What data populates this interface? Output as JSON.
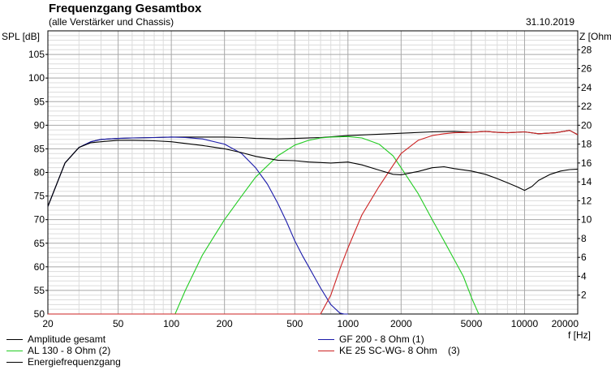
{
  "header": {
    "title": "Frequenzgang Gesamtbox",
    "subtitle": "(alle Verstärker und Chassis)",
    "date": "31.10.2019"
  },
  "chart_data": {
    "type": "line",
    "title": "Frequenzgang Gesamtbox",
    "subtitle": "(alle Verstärker und Chassis)",
    "xlabel": "f [Hz]",
    "ylabel": "SPL [dB]",
    "y2label": "Z [Ohm]",
    "xscale": "log",
    "xlim": [
      20,
      20000
    ],
    "ylim": [
      50,
      110
    ],
    "y2lim": [
      0,
      30
    ],
    "grid": true,
    "x_ticks": [
      20,
      50,
      100,
      200,
      500,
      1000,
      2000,
      5000,
      10000,
      20000
    ],
    "x_tick_labels": [
      "20",
      "50",
      "100",
      "200",
      "500",
      "1000",
      "2000",
      "5000",
      "10000",
      "20000"
    ],
    "y_ticks": [
      50,
      55,
      60,
      65,
      70,
      75,
      80,
      85,
      90,
      95,
      100,
      105
    ],
    "y_tick_labels": [
      "50",
      "55",
      "60",
      "65",
      "70",
      "75",
      "80",
      "85",
      "90",
      "95",
      "100",
      "105"
    ],
    "y2_ticks": [
      2,
      4,
      6,
      8,
      10,
      12,
      14,
      16,
      18,
      20,
      22,
      24,
      26,
      28
    ],
    "y2_tick_labels": [
      "2",
      "4",
      "6",
      "8",
      "10",
      "12",
      "14",
      "16",
      "18",
      "20",
      "22",
      "24",
      "26",
      "28"
    ],
    "legend_position": "bottom",
    "series": [
      {
        "name": "Amplitude gesamt",
        "color": "#000000",
        "x": [
          20,
          25,
          30,
          35,
          40,
          50,
          60,
          80,
          100,
          150,
          200,
          250,
          300,
          400,
          500,
          700,
          1000,
          1500,
          2000,
          3000,
          4000,
          5000,
          6000,
          7000,
          8000,
          10000,
          12000,
          15000,
          18000,
          20000
        ],
        "y": [
          72.8,
          82,
          85.3,
          86.5,
          87,
          87.2,
          87.3,
          87.4,
          87.5,
          87.5,
          87.5,
          87.4,
          87.2,
          87.1,
          87.2,
          87.4,
          87.8,
          88.1,
          88.3,
          88.6,
          88.7,
          88.5,
          88.7,
          88.5,
          88.4,
          88.6,
          88.2,
          88.4,
          88.9,
          88
        ]
      },
      {
        "name": "GF 200 - 8 Ohm (1)",
        "color": "#1a1aaa",
        "x": [
          20,
          25,
          30,
          35,
          40,
          50,
          60,
          80,
          100,
          120,
          150,
          200,
          250,
          300,
          350,
          400,
          450,
          500,
          550,
          600,
          700,
          800,
          900,
          950,
          1000
        ],
        "y": [
          72.8,
          82,
          85.3,
          86.5,
          87,
          87.2,
          87.3,
          87.4,
          87.5,
          87.4,
          87.1,
          86,
          84,
          81,
          77.5,
          73.5,
          69.5,
          65.5,
          62.5,
          60,
          55.5,
          52,
          50.2,
          50,
          50
        ]
      },
      {
        "name": "AL 130 - 8 Ohm (2)",
        "color": "#22cc22",
        "x": [
          20,
          105,
          120,
          150,
          200,
          250,
          300,
          400,
          500,
          600,
          700,
          800,
          1000,
          1200,
          1500,
          1800,
          2000,
          2500,
          3000,
          3500,
          4000,
          4500,
          5000,
          5500
        ],
        "y": [
          50,
          50,
          55,
          62.5,
          70,
          75,
          79,
          83.5,
          85.8,
          86.8,
          87.3,
          87.5,
          87.6,
          87.3,
          86,
          83.5,
          81,
          75.5,
          70,
          65.5,
          61.5,
          58,
          53.5,
          50
        ]
      },
      {
        "name": "KE 25 SC-WG- 8 Ohm    (3)",
        "color": "#cc2222",
        "x": [
          20,
          700,
          800,
          900,
          1000,
          1200,
          1500,
          1800,
          2000,
          2500,
          3000,
          3500,
          4000,
          5000,
          6000,
          7000,
          8000,
          10000,
          12000,
          15000,
          18000,
          20000
        ],
        "y": [
          50,
          50,
          54,
          59.5,
          64,
          71,
          77,
          81.5,
          84,
          86.8,
          87.8,
          88.2,
          88.4,
          88.5,
          88.7,
          88.5,
          88.4,
          88.6,
          88.2,
          88.4,
          88.9,
          88
        ]
      },
      {
        "name": "Energiefrequenzgang",
        "color": "#000000",
        "x": [
          20,
          25,
          30,
          35,
          40,
          50,
          60,
          80,
          100,
          150,
          200,
          250,
          300,
          400,
          500,
          600,
          700,
          800,
          1000,
          1200,
          1500,
          1800,
          2000,
          2500,
          3000,
          3500,
          4000,
          5000,
          6000,
          7000,
          8000,
          9000,
          10000,
          11000,
          12000,
          14000,
          16000,
          18000,
          20000
        ],
        "y": [
          72.8,
          82,
          85.3,
          86.3,
          86.5,
          86.8,
          86.8,
          86.7,
          86.5,
          85.7,
          85,
          84.2,
          83.4,
          82.6,
          82.5,
          82.2,
          82.1,
          82,
          82.2,
          81.6,
          80.5,
          79.6,
          79.5,
          80.2,
          81,
          81.2,
          80.8,
          80.3,
          79.6,
          78.7,
          77.8,
          77,
          76.2,
          77,
          78.3,
          79.6,
          80.3,
          80.6,
          80.7
        ]
      }
    ]
  },
  "legend": {
    "items": [
      {
        "label": "Amplitude gesamt",
        "color": "#000000"
      },
      {
        "label": "GF 200 - 8 Ohm (1)",
        "color": "#1a1aaa"
      },
      {
        "label": "AL 130 - 8 Ohm (2)",
        "color": "#22cc22"
      },
      {
        "label": "KE 25 SC-WG- 8 Ohm    (3)",
        "color": "#cc2222"
      },
      {
        "label": "Energiefrequenzgang",
        "color": "#000000"
      }
    ]
  }
}
